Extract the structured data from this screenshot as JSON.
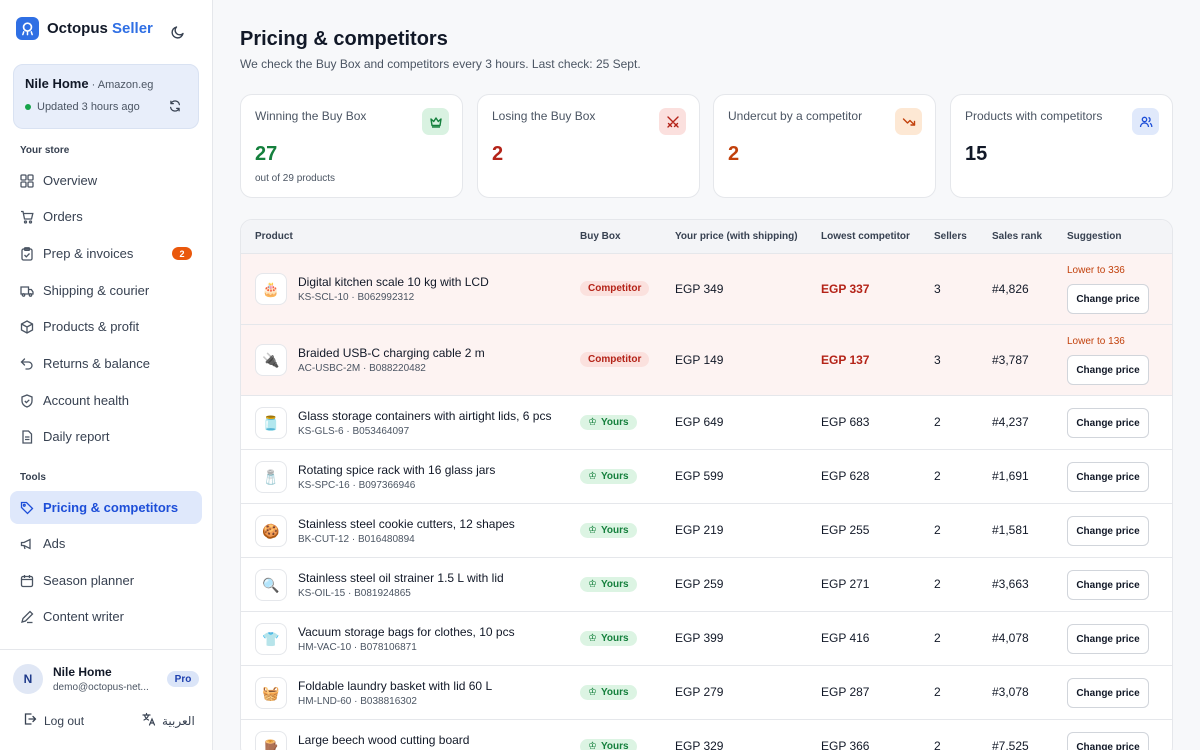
{
  "brand": {
    "name": "Octopus",
    "accent": "Seller"
  },
  "store": {
    "name": "Nile Home",
    "market": " · Amazon.eg",
    "status": "Updated 3 hours ago"
  },
  "sidebar": {
    "section_store": "Your store",
    "items": [
      {
        "label": "Overview",
        "icon": "grid-icon"
      },
      {
        "label": "Orders",
        "icon": "cart-icon"
      },
      {
        "label": "Prep & invoices",
        "icon": "clipboard-icon",
        "badge": "2"
      },
      {
        "label": "Shipping & courier",
        "icon": "truck-icon"
      },
      {
        "label": "Products & profit",
        "icon": "box-icon"
      },
      {
        "label": "Returns & balance",
        "icon": "undo-icon"
      },
      {
        "label": "Account health",
        "icon": "shield-icon"
      },
      {
        "label": "Daily report",
        "icon": "document-icon"
      }
    ],
    "section_tools": "Tools",
    "tools": [
      {
        "label": "Pricing & competitors",
        "icon": "tag-icon",
        "active": true
      },
      {
        "label": "Ads",
        "icon": "megaphone-icon"
      },
      {
        "label": "Season planner",
        "icon": "calendar-icon"
      },
      {
        "label": "Content writer",
        "icon": "pen-icon"
      }
    ]
  },
  "user": {
    "initial": "N",
    "name": "Nile Home",
    "email": "demo@octopus-net...",
    "plan": "Pro"
  },
  "footer": {
    "logout": "Log out",
    "language": "العربية"
  },
  "page": {
    "title": "Pricing & competitors",
    "subtitle": "We check the Buy Box and competitors every 3 hours. Last check: 25 Sept."
  },
  "stats": [
    {
      "label": "Winning the Buy Box",
      "value": "27",
      "sub": "out of 29 products",
      "color": "#15803d",
      "icon": "crown-icon"
    },
    {
      "label": "Losing the Buy Box",
      "value": "2",
      "color": "#b42318",
      "icon": "swords-icon"
    },
    {
      "label": "Undercut by a competitor",
      "value": "2",
      "color": "#c2410c",
      "icon": "trend-down-icon"
    },
    {
      "label": "Products with competitors",
      "value": "15",
      "color": "#111827",
      "icon": "users-icon"
    }
  ],
  "table": {
    "headers": [
      "Product",
      "Buy Box",
      "Your price (with shipping)",
      "Lowest competitor",
      "Sellers",
      "Sales rank",
      "Suggestion"
    ],
    "button_label": "Change price",
    "rows": [
      {
        "name": "Digital kitchen scale 10 kg with LCD",
        "sku": "KS-SCL-10 · B062992312",
        "buybox": "Competitor",
        "price": "EGP 349",
        "lowest": "EGP 337",
        "sellers": "3",
        "rank": "#4,826",
        "suggestion": "Lower to 336",
        "thumb": "🎂"
      },
      {
        "name": "Braided USB-C charging cable 2 m",
        "sku": "AC-USBC-2M · B088220482",
        "buybox": "Competitor",
        "price": "EGP 149",
        "lowest": "EGP 137",
        "sellers": "3",
        "rank": "#3,787",
        "suggestion": "Lower to 136",
        "thumb": "🔌"
      },
      {
        "name": "Glass storage containers with airtight lids, 6 pcs",
        "sku": "KS-GLS-6 · B053464097",
        "buybox": "Yours",
        "price": "EGP 649",
        "lowest": "EGP 683",
        "sellers": "2",
        "rank": "#4,237",
        "thumb": "🫙"
      },
      {
        "name": "Rotating spice rack with 16 glass jars",
        "sku": "KS-SPC-16 · B097366946",
        "buybox": "Yours",
        "price": "EGP 599",
        "lowest": "EGP 628",
        "sellers": "2",
        "rank": "#1,691",
        "thumb": "🧂"
      },
      {
        "name": "Stainless steel cookie cutters, 12 shapes",
        "sku": "BK-CUT-12 · B016480894",
        "buybox": "Yours",
        "price": "EGP 219",
        "lowest": "EGP 255",
        "sellers": "2",
        "rank": "#1,581",
        "thumb": "🍪"
      },
      {
        "name": "Stainless steel oil strainer 1.5 L with lid",
        "sku": "KS-OIL-15 · B081924865",
        "buybox": "Yours",
        "price": "EGP 259",
        "lowest": "EGP 271",
        "sellers": "2",
        "rank": "#3,663",
        "thumb": "🔍"
      },
      {
        "name": "Vacuum storage bags for clothes, 10 pcs",
        "sku": "HM-VAC-10 · B078106871",
        "buybox": "Yours",
        "price": "EGP 399",
        "lowest": "EGP 416",
        "sellers": "2",
        "rank": "#4,078",
        "thumb": "👕"
      },
      {
        "name": "Foldable laundry basket with lid 60 L",
        "sku": "HM-LND-60 · B038816302",
        "buybox": "Yours",
        "price": "EGP 279",
        "lowest": "EGP 287",
        "sellers": "2",
        "rank": "#3,078",
        "thumb": "🧺"
      },
      {
        "name": "Large beech wood cutting board",
        "sku": "",
        "buybox": "Yours",
        "price": "EGP 329",
        "lowest": "EGP 366",
        "sellers": "2",
        "rank": "#7,525",
        "thumb": "🪵"
      }
    ]
  }
}
